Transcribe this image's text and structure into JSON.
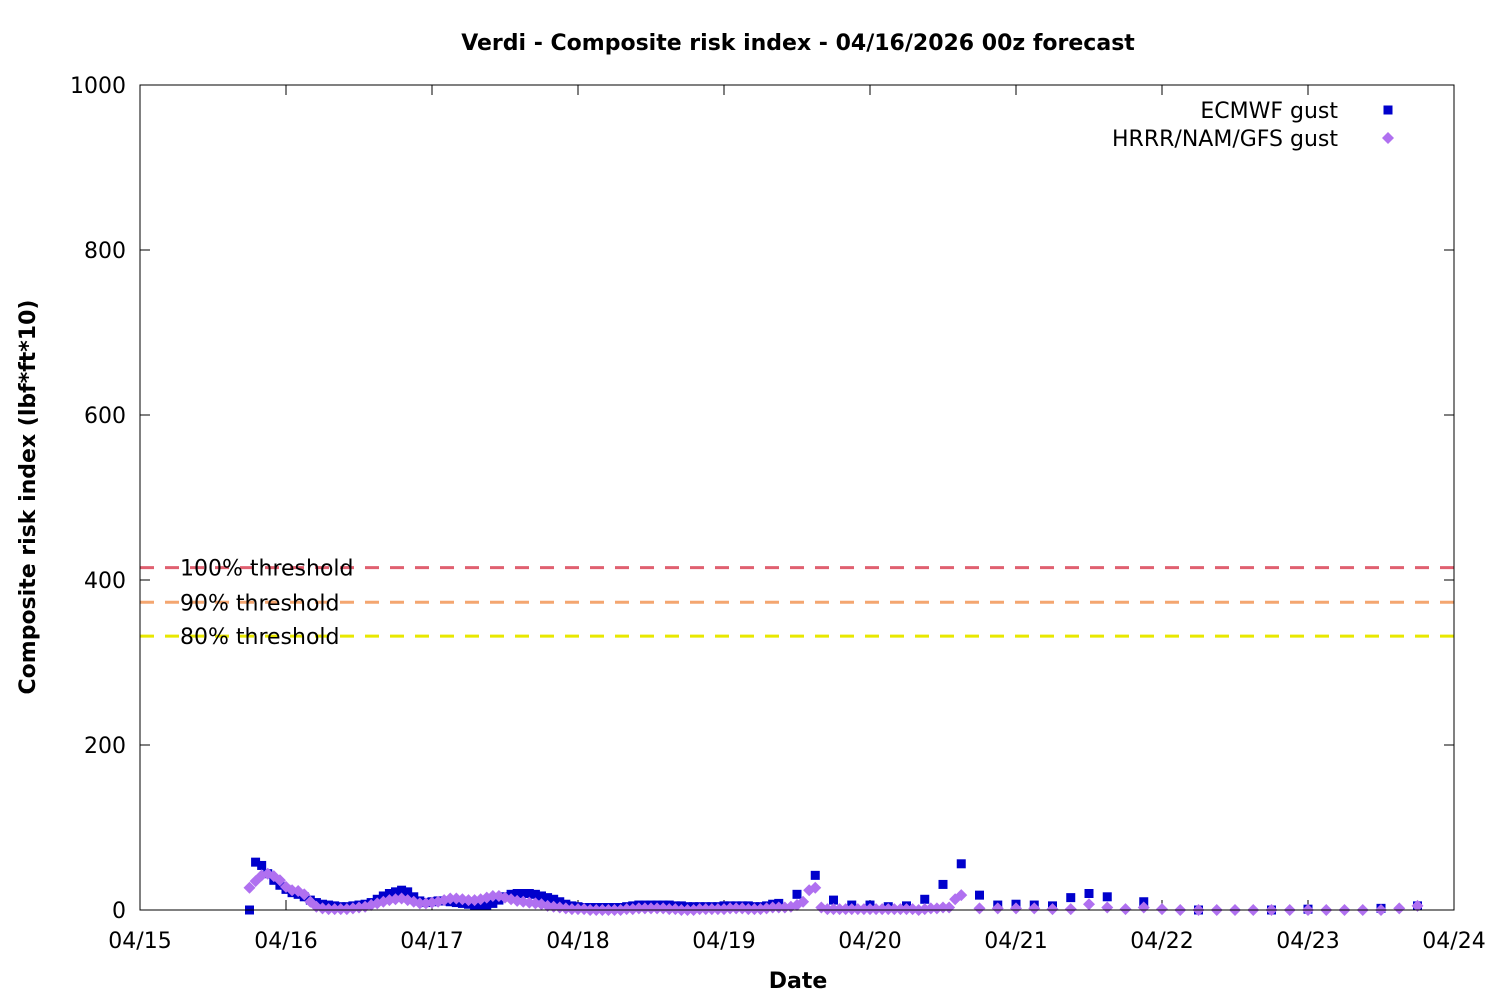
{
  "chart_data": {
    "type": "scatter",
    "title": "Verdi - Composite risk index - 04/16/2026 00z forecast",
    "xlabel": "Date",
    "ylabel": "Composite risk index (lbf*ft*10)",
    "xlim": [
      "04/15 00:00",
      "04/24 00:00"
    ],
    "ylim": [
      0,
      1000
    ],
    "x_ticks": [
      "04/15",
      "04/16",
      "04/17",
      "04/18",
      "04/19",
      "04/20",
      "04/21",
      "04/22",
      "04/23",
      "04/24"
    ],
    "y_ticks": [
      0,
      200,
      400,
      600,
      800,
      1000
    ],
    "legend_position": "top-right",
    "grid": false,
    "thresholds": [
      {
        "label": "100% threshold",
        "value": 415,
        "color": "#e06070"
      },
      {
        "label": "90% threshold",
        "value": 373,
        "color": "#f4a670"
      },
      {
        "label": "80% threshold",
        "value": 332,
        "color": "#e8e800"
      }
    ],
    "series": [
      {
        "name": "ECMWF gust",
        "marker": "square",
        "color": "#0000cc",
        "points": [
          [
            "04/15 18:00",
            0
          ],
          [
            "04/15 19:00",
            58
          ],
          [
            "04/15 20:00",
            54
          ],
          [
            "04/15 21:00",
            44
          ],
          [
            "04/15 22:00",
            36
          ],
          [
            "04/15 23:00",
            30
          ],
          [
            "04/16 00:00",
            25
          ],
          [
            "04/16 01:00",
            21
          ],
          [
            "04/16 02:00",
            19
          ],
          [
            "04/16 03:00",
            16
          ],
          [
            "04/16 04:00",
            12
          ],
          [
            "04/16 05:00",
            9
          ],
          [
            "04/16 06:00",
            7
          ],
          [
            "04/16 07:00",
            6
          ],
          [
            "04/16 08:00",
            5
          ],
          [
            "04/16 09:00",
            4
          ],
          [
            "04/16 10:00",
            4
          ],
          [
            "04/16 11:00",
            5
          ],
          [
            "04/16 12:00",
            6
          ],
          [
            "04/16 13:00",
            7
          ],
          [
            "04/16 14:00",
            9
          ],
          [
            "04/16 15:00",
            13
          ],
          [
            "04/16 16:00",
            17
          ],
          [
            "04/16 17:00",
            20
          ],
          [
            "04/16 18:00",
            22
          ],
          [
            "04/16 19:00",
            24
          ],
          [
            "04/16 20:00",
            22
          ],
          [
            "04/16 21:00",
            16
          ],
          [
            "04/16 22:00",
            11
          ],
          [
            "04/16 23:00",
            9
          ],
          [
            "04/17 00:00",
            10
          ],
          [
            "04/17 01:00",
            11
          ],
          [
            "04/17 02:00",
            11
          ],
          [
            "04/17 03:00",
            10
          ],
          [
            "04/17 04:00",
            9
          ],
          [
            "04/17 05:00",
            8
          ],
          [
            "04/17 06:00",
            7
          ],
          [
            "04/17 07:00",
            6
          ],
          [
            "04/17 08:00",
            5
          ],
          [
            "04/17 09:00",
            6
          ],
          [
            "04/17 10:00",
            8
          ],
          [
            "04/17 11:00",
            12
          ],
          [
            "04/17 12:00",
            16
          ],
          [
            "04/17 13:00",
            19
          ],
          [
            "04/17 14:00",
            20
          ],
          [
            "04/17 15:00",
            20
          ],
          [
            "04/17 16:00",
            20
          ],
          [
            "04/17 17:00",
            19
          ],
          [
            "04/17 18:00",
            17
          ],
          [
            "04/17 19:00",
            15
          ],
          [
            "04/17 20:00",
            13
          ],
          [
            "04/17 21:00",
            10
          ],
          [
            "04/17 22:00",
            7
          ],
          [
            "04/17 23:00",
            5
          ],
          [
            "04/18 00:00",
            4
          ],
          [
            "04/18 01:00",
            3
          ],
          [
            "04/18 02:00",
            3
          ],
          [
            "04/18 03:00",
            3
          ],
          [
            "04/18 04:00",
            3
          ],
          [
            "04/18 05:00",
            3
          ],
          [
            "04/18 06:00",
            3
          ],
          [
            "04/18 07:00",
            3
          ],
          [
            "04/18 08:00",
            4
          ],
          [
            "04/18 09:00",
            5
          ],
          [
            "04/18 10:00",
            6
          ],
          [
            "04/18 11:00",
            6
          ],
          [
            "04/18 12:00",
            6
          ],
          [
            "04/18 13:00",
            6
          ],
          [
            "04/18 14:00",
            6
          ],
          [
            "04/18 15:00",
            6
          ],
          [
            "04/18 16:00",
            5
          ],
          [
            "04/18 17:00",
            5
          ],
          [
            "04/18 18:00",
            4
          ],
          [
            "04/18 19:00",
            4
          ],
          [
            "04/18 20:00",
            4
          ],
          [
            "04/18 21:00",
            4
          ],
          [
            "04/18 22:00",
            4
          ],
          [
            "04/18 23:00",
            4
          ],
          [
            "04/19 00:00",
            5
          ],
          [
            "04/19 01:00",
            5
          ],
          [
            "04/19 02:00",
            5
          ],
          [
            "04/19 03:00",
            5
          ],
          [
            "04/19 04:00",
            5
          ],
          [
            "04/19 05:00",
            4
          ],
          [
            "04/19 06:00",
            4
          ],
          [
            "04/19 07:00",
            5
          ],
          [
            "04/19 08:00",
            7
          ],
          [
            "04/19 09:00",
            8
          ],
          [
            "04/19 12:00",
            19
          ],
          [
            "04/19 15:00",
            42
          ],
          [
            "04/19 18:00",
            12
          ],
          [
            "04/19 21:00",
            6
          ],
          [
            "04/20 00:00",
            6
          ],
          [
            "04/20 03:00",
            4
          ],
          [
            "04/20 06:00",
            5
          ],
          [
            "04/20 09:00",
            13
          ],
          [
            "04/20 12:00",
            31
          ],
          [
            "04/20 15:00",
            56
          ],
          [
            "04/20 18:00",
            18
          ],
          [
            "04/20 21:00",
            6
          ],
          [
            "04/21 00:00",
            7
          ],
          [
            "04/21 03:00",
            6
          ],
          [
            "04/21 06:00",
            5
          ],
          [
            "04/21 09:00",
            15
          ],
          [
            "04/21 12:00",
            20
          ],
          [
            "04/21 15:00",
            16
          ],
          [
            "04/21 21:00",
            10
          ],
          [
            "04/22 06:00",
            0
          ],
          [
            "04/22 18:00",
            0
          ],
          [
            "04/23 00:00",
            1
          ],
          [
            "04/23 12:00",
            2
          ],
          [
            "04/23 18:00",
            5
          ]
        ]
      },
      {
        "name": "HRRR/NAM/GFS gust",
        "marker": "diamond",
        "color": "#b070f0",
        "points": [
          [
            "04/15 18:00",
            27
          ],
          [
            "04/15 19:00",
            35
          ],
          [
            "04/15 20:00",
            42
          ],
          [
            "04/15 21:00",
            44
          ],
          [
            "04/15 22:00",
            41
          ],
          [
            "04/15 23:00",
            36
          ],
          [
            "04/16 00:00",
            28
          ],
          [
            "04/16 01:00",
            24
          ],
          [
            "04/16 02:00",
            23
          ],
          [
            "04/16 03:00",
            19
          ],
          [
            "04/16 04:00",
            10
          ],
          [
            "04/16 05:00",
            4
          ],
          [
            "04/16 06:00",
            2
          ],
          [
            "04/16 07:00",
            1
          ],
          [
            "04/16 08:00",
            1
          ],
          [
            "04/16 09:00",
            1
          ],
          [
            "04/16 10:00",
            1
          ],
          [
            "04/16 11:00",
            2
          ],
          [
            "04/16 12:00",
            3
          ],
          [
            "04/16 13:00",
            4
          ],
          [
            "04/16 14:00",
            6
          ],
          [
            "04/16 15:00",
            8
          ],
          [
            "04/16 16:00",
            10
          ],
          [
            "04/16 17:00",
            12
          ],
          [
            "04/16 18:00",
            13
          ],
          [
            "04/16 19:00",
            14
          ],
          [
            "04/16 20:00",
            12
          ],
          [
            "04/16 21:00",
            10
          ],
          [
            "04/16 22:00",
            8
          ],
          [
            "04/16 23:00",
            8
          ],
          [
            "04/17 00:00",
            9
          ],
          [
            "04/17 01:00",
            10
          ],
          [
            "04/17 02:00",
            12
          ],
          [
            "04/17 03:00",
            14
          ],
          [
            "04/17 04:00",
            14
          ],
          [
            "04/17 05:00",
            13
          ],
          [
            "04/17 06:00",
            12
          ],
          [
            "04/17 07:00",
            12
          ],
          [
            "04/17 08:00",
            13
          ],
          [
            "04/17 09:00",
            15
          ],
          [
            "04/17 10:00",
            17
          ],
          [
            "04/17 11:00",
            17
          ],
          [
            "04/17 12:00",
            15
          ],
          [
            "04/17 13:00",
            13
          ],
          [
            "04/17 14:00",
            11
          ],
          [
            "04/17 15:00",
            10
          ],
          [
            "04/17 16:00",
            9
          ],
          [
            "04/17 17:00",
            8
          ],
          [
            "04/17 18:00",
            7
          ],
          [
            "04/17 19:00",
            5
          ],
          [
            "04/17 20:00",
            4
          ],
          [
            "04/17 21:00",
            3
          ],
          [
            "04/17 22:00",
            2
          ],
          [
            "04/17 23:00",
            1
          ],
          [
            "04/18 00:00",
            1
          ],
          [
            "04/18 01:00",
            1
          ],
          [
            "04/18 02:00",
            0
          ],
          [
            "04/18 03:00",
            0
          ],
          [
            "04/18 04:00",
            0
          ],
          [
            "04/18 05:00",
            0
          ],
          [
            "04/18 06:00",
            0
          ],
          [
            "04/18 07:00",
            0
          ],
          [
            "04/18 08:00",
            1
          ],
          [
            "04/18 09:00",
            1
          ],
          [
            "04/18 10:00",
            2
          ],
          [
            "04/18 11:00",
            2
          ],
          [
            "04/18 12:00",
            2
          ],
          [
            "04/18 13:00",
            2
          ],
          [
            "04/18 14:00",
            2
          ],
          [
            "04/18 15:00",
            1
          ],
          [
            "04/18 16:00",
            1
          ],
          [
            "04/18 17:00",
            0
          ],
          [
            "04/18 18:00",
            0
          ],
          [
            "04/18 19:00",
            0
          ],
          [
            "04/18 20:00",
            1
          ],
          [
            "04/18 21:00",
            1
          ],
          [
            "04/18 22:00",
            1
          ],
          [
            "04/18 23:00",
            1
          ],
          [
            "04/19 00:00",
            1
          ],
          [
            "04/19 01:00",
            2
          ],
          [
            "04/19 02:00",
            2
          ],
          [
            "04/19 03:00",
            2
          ],
          [
            "04/19 04:00",
            1
          ],
          [
            "04/19 05:00",
            1
          ],
          [
            "04/19 06:00",
            1
          ],
          [
            "04/19 07:00",
            2
          ],
          [
            "04/19 08:00",
            3
          ],
          [
            "04/19 09:00",
            3
          ],
          [
            "04/19 10:00",
            3
          ],
          [
            "04/19 11:00",
            4
          ],
          [
            "04/19 12:00",
            6
          ],
          [
            "04/19 13:00",
            10
          ],
          [
            "04/19 14:00",
            24
          ],
          [
            "04/19 15:00",
            27
          ],
          [
            "04/19 16:00",
            3
          ],
          [
            "04/19 17:00",
            1
          ],
          [
            "04/19 18:00",
            1
          ],
          [
            "04/19 19:00",
            1
          ],
          [
            "04/19 20:00",
            1
          ],
          [
            "04/19 21:00",
            1
          ],
          [
            "04/19 22:00",
            1
          ],
          [
            "04/19 23:00",
            1
          ],
          [
            "04/20 00:00",
            1
          ],
          [
            "04/20 01:00",
            1
          ],
          [
            "04/20 02:00",
            1
          ],
          [
            "04/20 03:00",
            1
          ],
          [
            "04/20 04:00",
            1
          ],
          [
            "04/20 05:00",
            1
          ],
          [
            "04/20 06:00",
            1
          ],
          [
            "04/20 07:00",
            1
          ],
          [
            "04/20 08:00",
            0
          ],
          [
            "04/20 09:00",
            1
          ],
          [
            "04/20 10:00",
            2
          ],
          [
            "04/20 11:00",
            2
          ],
          [
            "04/20 12:00",
            3
          ],
          [
            "04/20 13:00",
            3
          ],
          [
            "04/20 14:00",
            13
          ],
          [
            "04/20 15:00",
            18
          ],
          [
            "04/20 18:00",
            2
          ],
          [
            "04/20 21:00",
            2
          ],
          [
            "04/21 00:00",
            2
          ],
          [
            "04/21 03:00",
            2
          ],
          [
            "04/21 06:00",
            1
          ],
          [
            "04/21 09:00",
            1
          ],
          [
            "04/21 12:00",
            7
          ],
          [
            "04/21 15:00",
            3
          ],
          [
            "04/21 18:00",
            1
          ],
          [
            "04/21 21:00",
            3
          ],
          [
            "04/22 00:00",
            1
          ],
          [
            "04/22 03:00",
            0
          ],
          [
            "04/22 06:00",
            0
          ],
          [
            "04/22 09:00",
            0
          ],
          [
            "04/22 12:00",
            0
          ],
          [
            "04/22 15:00",
            0
          ],
          [
            "04/22 18:00",
            0
          ],
          [
            "04/22 21:00",
            0
          ],
          [
            "04/23 00:00",
            0
          ],
          [
            "04/23 03:00",
            0
          ],
          [
            "04/23 06:00",
            0
          ],
          [
            "04/23 09:00",
            0
          ],
          [
            "04/23 12:00",
            0
          ],
          [
            "04/23 15:00",
            2
          ],
          [
            "04/23 18:00",
            5
          ]
        ]
      }
    ]
  }
}
